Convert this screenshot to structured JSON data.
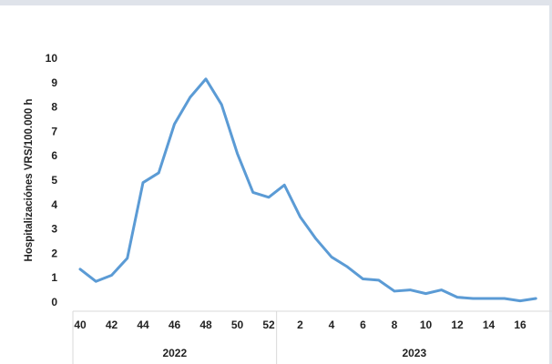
{
  "chart_data": {
    "type": "line",
    "title": "",
    "ylabel": "Hospitalizaciónes VRS/100.000 h",
    "xlabel": "",
    "ylim": [
      0,
      10
    ],
    "y_ticks": [
      "0",
      "1",
      "2",
      "3",
      "4",
      "5",
      "6",
      "7",
      "8",
      "9",
      "10"
    ],
    "x": [
      "40",
      "41",
      "42",
      "43",
      "44",
      "45",
      "46",
      "47",
      "48",
      "49",
      "50",
      "51",
      "52",
      "1",
      "2",
      "3",
      "4",
      "5",
      "6",
      "7",
      "8",
      "9",
      "10",
      "11",
      "12",
      "13",
      "14",
      "15",
      "16",
      "17"
    ],
    "x_tick_labels": [
      "40",
      "42",
      "44",
      "46",
      "48",
      "50",
      "52",
      "2",
      "4",
      "6",
      "8",
      "10",
      "12",
      "14",
      "16"
    ],
    "year_groups": [
      {
        "label": "2022",
        "weeks": 13
      },
      {
        "label": "2023",
        "weeks": 17
      }
    ],
    "series": [
      {
        "color": "#5b9bd5",
        "values": [
          1.35,
          0.85,
          1.1,
          1.8,
          4.9,
          5.3,
          7.3,
          8.4,
          9.15,
          8.1,
          6.1,
          4.5,
          4.3,
          4.8,
          3.5,
          2.6,
          1.85,
          1.45,
          0.95,
          0.9,
          0.45,
          0.5,
          0.35,
          0.5,
          0.2,
          0.15,
          0.15,
          0.15,
          0.05,
          0.15
        ]
      }
    ],
    "grid": false,
    "legend": "none"
  }
}
